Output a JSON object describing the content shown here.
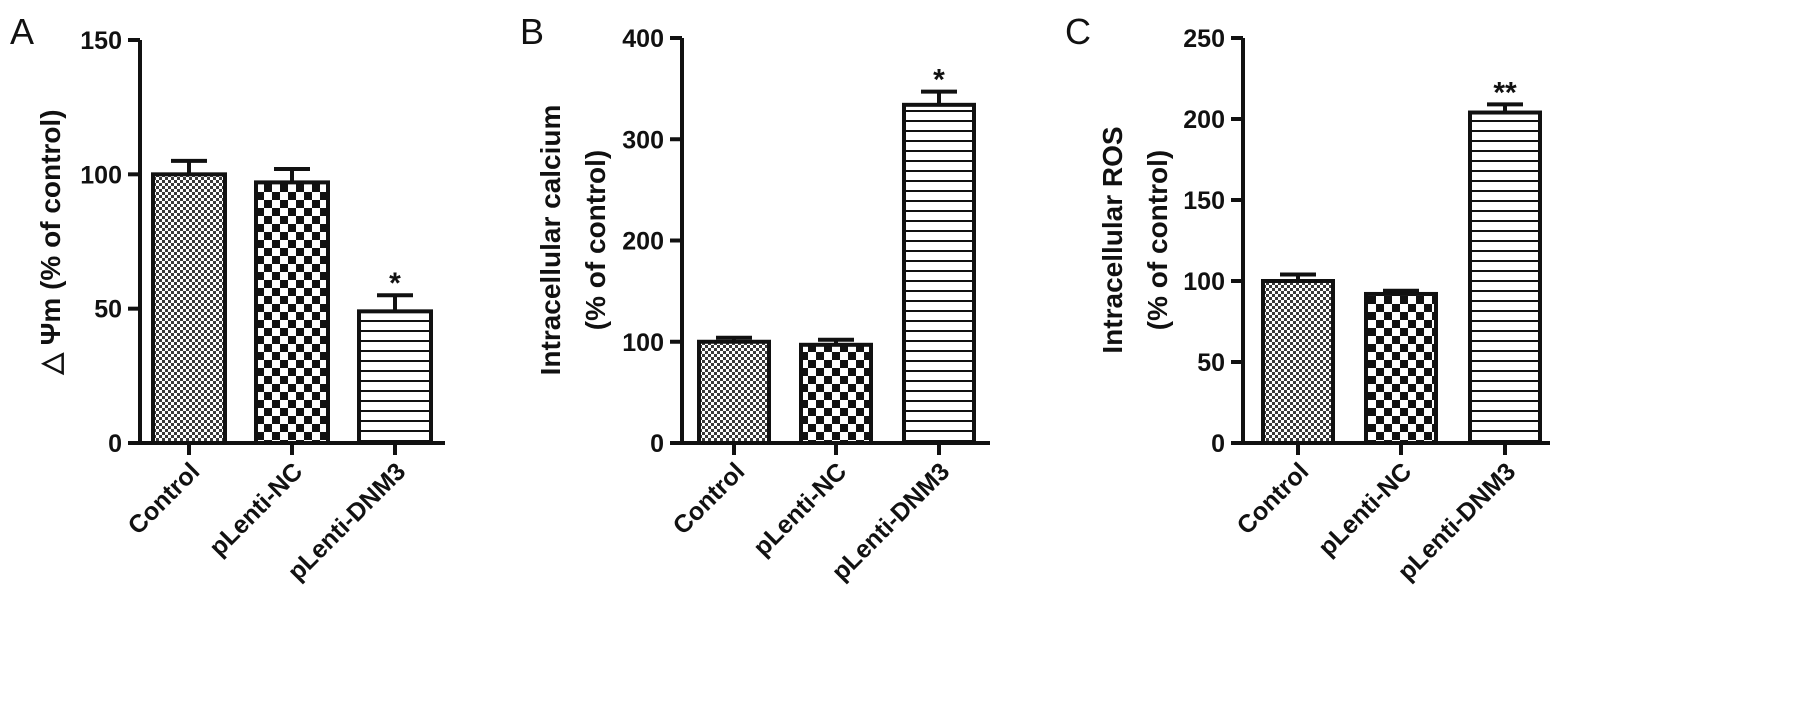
{
  "chart_data": [
    {
      "type": "bar",
      "panel": "A",
      "categories": [
        "Control",
        "pLenti-NC",
        "pLenti-DNM3"
      ],
      "values": [
        100,
        97,
        49
      ],
      "errors": [
        5,
        5,
        6
      ],
      "significance": [
        "",
        "",
        "*"
      ],
      "patterns": [
        "fine-check",
        "checker",
        "hlines"
      ],
      "ylabel": "△ Ψm (% of control)",
      "ylim": [
        0,
        150
      ],
      "yticks": [
        0,
        50,
        100,
        150
      ]
    },
    {
      "type": "bar",
      "panel": "B",
      "categories": [
        "Control",
        "pLenti-NC",
        "pLenti-DNM3"
      ],
      "values": [
        100,
        97,
        334
      ],
      "errors": [
        4,
        5,
        13
      ],
      "significance": [
        "",
        "",
        "*"
      ],
      "patterns": [
        "fine-check",
        "checker",
        "hlines"
      ],
      "ylabel_lines": [
        "Intracellular calcium",
        "(% of control)"
      ],
      "ylim": [
        0,
        400
      ],
      "yticks": [
        0,
        100,
        200,
        300,
        400
      ]
    },
    {
      "type": "bar",
      "panel": "C",
      "categories": [
        "Control",
        "pLenti-NC",
        "pLenti-DNM3"
      ],
      "values": [
        100,
        92,
        204
      ],
      "errors": [
        4,
        2,
        5
      ],
      "significance": [
        "",
        "",
        "**"
      ],
      "patterns": [
        "fine-check",
        "checker",
        "hlines"
      ],
      "ylabel_lines": [
        "Intracellular ROS",
        "(% of control)"
      ],
      "ylim": [
        0,
        250
      ],
      "yticks": [
        0,
        50,
        100,
        150,
        200,
        250
      ]
    }
  ]
}
